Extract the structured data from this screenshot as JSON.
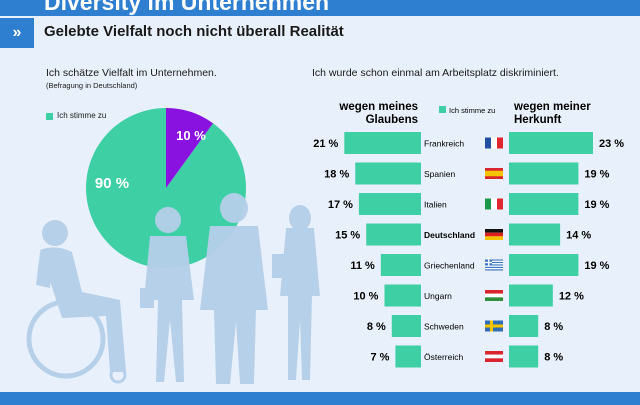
{
  "header": {
    "title": "Diversity im Unternehmen",
    "subtitle": "Gelebte Vielfalt noch nicht überall Realität",
    "chevron": "»"
  },
  "colors": {
    "accent": "#2f7fd0",
    "teal": "#3ecfa4",
    "purple": "#8a12e0",
    "figures": "#b4cfe9"
  },
  "chart_data": [
    {
      "type": "pie",
      "title": "Ich schätze Vielfalt im Unternehmen.",
      "subtitle": "(Befragung in Deutschland)",
      "legend": "Ich stimme zu",
      "slices": [
        {
          "label": "Ich stimme zu",
          "value": 90,
          "display": "90 %"
        },
        {
          "label": "",
          "value": 10,
          "display": "10 %"
        }
      ]
    },
    {
      "type": "bar",
      "title": "Ich wurde schon einmal am Arbeitsplatz diskriminiert.",
      "legend": "Ich stimme zu",
      "left_header": [
        "wegen meines",
        "Glaubens"
      ],
      "right_header": [
        "wegen meiner",
        "Herkunft"
      ],
      "xlim": [
        0,
        23
      ],
      "categories": [
        "Frankreich",
        "Spanien",
        "Italien",
        "Deutschland",
        "Griechenland",
        "Ungarn",
        "Schweden",
        "Österreich"
      ],
      "highlight": "Deutschland",
      "flags": [
        "flag-france",
        "flag-spain",
        "flag-italy",
        "flag-germany",
        "flag-greece",
        "flag-hungary",
        "flag-sweden",
        "flag-austria"
      ],
      "series": [
        {
          "name": "wegen meines Glaubens",
          "values": [
            21,
            18,
            17,
            15,
            11,
            10,
            8,
            7
          ]
        },
        {
          "name": "wegen meiner Herkunft",
          "values": [
            23,
            19,
            19,
            14,
            19,
            12,
            8,
            8
          ]
        }
      ],
      "unit": "%"
    }
  ]
}
